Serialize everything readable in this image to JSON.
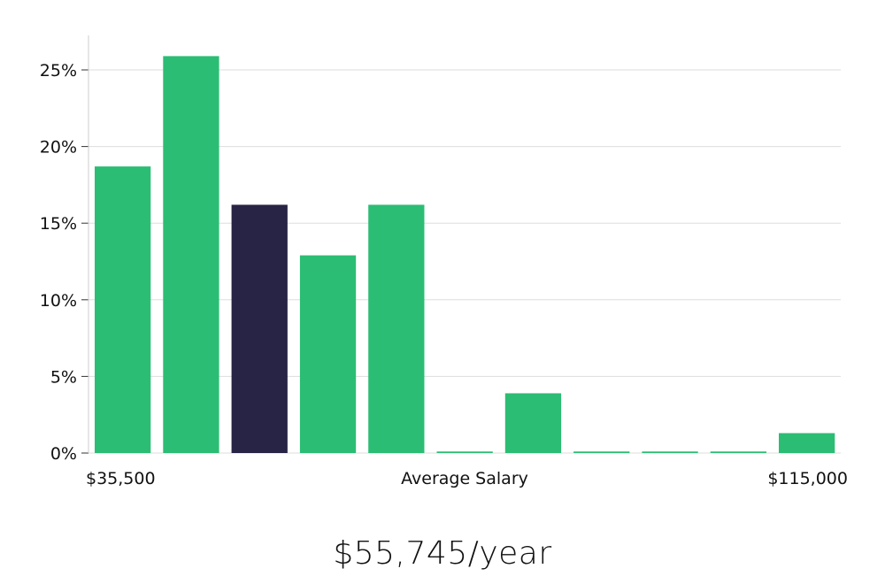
{
  "chart_data": {
    "type": "bar",
    "title": "",
    "xlabel": "Average Salary",
    "ylabel": "",
    "x_range_labels": {
      "min": "$35,500",
      "max": "$115,000"
    },
    "ylim": [
      0,
      27
    ],
    "yticks": [
      0,
      5,
      10,
      15,
      20,
      25
    ],
    "ytick_labels": [
      "0%",
      "5%",
      "10%",
      "15%",
      "20%",
      "25%"
    ],
    "values": [
      18.7,
      25.9,
      16.2,
      12.9,
      16.2,
      0.1,
      3.9,
      0.1,
      0.1,
      0.1,
      1.3
    ],
    "highlight_index": 2,
    "grid": true
  },
  "colors": {
    "bar": "#2bbd74",
    "highlight": "#272445",
    "grid": "#dddddd",
    "axis": "#cccccc"
  },
  "summary": {
    "salary": "$55,745/year"
  }
}
